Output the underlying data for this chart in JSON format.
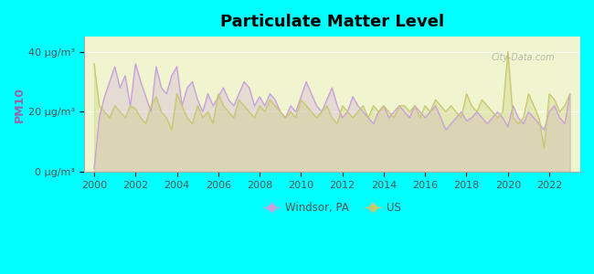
{
  "title": "Particulate Matter Level",
  "ylabel": "PM10",
  "background_color": "#00FFFF",
  "plot_bg_color": "#f0f5d0",
  "windsor_color": "#c9a0dc",
  "us_color": "#c8c870",
  "ylim": [
    0,
    45
  ],
  "ytick_labels": [
    "0 μg/m³",
    "20 μg/m³",
    "40 μg/m³"
  ],
  "ytick_values": [
    0,
    20,
    40
  ],
  "xmin": 1999.5,
  "xmax": 2023.5,
  "windsor_x": [
    2000.0,
    2000.25,
    2000.5,
    2000.75,
    2001.0,
    2001.25,
    2001.5,
    2001.75,
    2002.0,
    2002.25,
    2002.5,
    2002.75,
    2003.0,
    2003.25,
    2003.5,
    2003.75,
    2004.0,
    2004.25,
    2004.5,
    2004.75,
    2005.0,
    2005.25,
    2005.5,
    2005.75,
    2006.0,
    2006.25,
    2006.5,
    2006.75,
    2007.0,
    2007.25,
    2007.5,
    2007.75,
    2008.0,
    2008.25,
    2008.5,
    2008.75,
    2009.0,
    2009.25,
    2009.5,
    2009.75,
    2010.0,
    2010.25,
    2010.5,
    2010.75,
    2011.0,
    2011.25,
    2011.5,
    2011.75,
    2012.0,
    2012.25,
    2012.5,
    2012.75,
    2013.0,
    2013.25,
    2013.5,
    2013.75,
    2014.0,
    2014.25,
    2014.5,
    2014.75,
    2015.0,
    2015.25,
    2015.5,
    2015.75,
    2016.0,
    2016.25,
    2016.5,
    2016.75,
    2017.0,
    2017.25,
    2017.5,
    2017.75,
    2018.0,
    2018.25,
    2018.5,
    2018.75,
    2019.0,
    2019.25,
    2019.5,
    2019.75,
    2020.0,
    2020.25,
    2020.5,
    2020.75,
    2021.0,
    2021.25,
    2021.5,
    2021.75,
    2022.0,
    2022.25,
    2022.5,
    2022.75,
    2023.0
  ],
  "windsor_y": [
    1,
    18,
    25,
    30,
    35,
    28,
    32,
    22,
    36,
    30,
    25,
    20,
    35,
    28,
    26,
    32,
    35,
    22,
    28,
    30,
    24,
    20,
    26,
    22,
    25,
    28,
    24,
    22,
    26,
    30,
    28,
    22,
    25,
    22,
    26,
    24,
    20,
    18,
    22,
    20,
    25,
    30,
    26,
    22,
    20,
    24,
    28,
    22,
    18,
    20,
    25,
    22,
    20,
    18,
    16,
    20,
    22,
    18,
    20,
    22,
    20,
    18,
    22,
    20,
    18,
    20,
    22,
    18,
    14,
    16,
    18,
    20,
    17,
    18,
    20,
    18,
    16,
    18,
    20,
    18,
    15,
    22,
    18,
    16,
    20,
    18,
    16,
    14,
    20,
    22,
    18,
    16,
    26
  ],
  "us_x": [
    2000.0,
    2000.25,
    2000.5,
    2000.75,
    2001.0,
    2001.25,
    2001.5,
    2001.75,
    2002.0,
    2002.25,
    2002.5,
    2002.75,
    2003.0,
    2003.25,
    2003.5,
    2003.75,
    2004.0,
    2004.25,
    2004.5,
    2004.75,
    2005.0,
    2005.25,
    2005.5,
    2005.75,
    2006.0,
    2006.25,
    2006.5,
    2006.75,
    2007.0,
    2007.25,
    2007.5,
    2007.75,
    2008.0,
    2008.25,
    2008.5,
    2008.75,
    2009.0,
    2009.25,
    2009.5,
    2009.75,
    2010.0,
    2010.25,
    2010.5,
    2010.75,
    2011.0,
    2011.25,
    2011.5,
    2011.75,
    2012.0,
    2012.25,
    2012.5,
    2012.75,
    2013.0,
    2013.25,
    2013.5,
    2013.75,
    2014.0,
    2014.25,
    2014.5,
    2014.75,
    2015.0,
    2015.25,
    2015.5,
    2015.75,
    2016.0,
    2016.25,
    2016.5,
    2016.75,
    2017.0,
    2017.25,
    2017.5,
    2017.75,
    2018.0,
    2018.25,
    2018.5,
    2018.75,
    2019.0,
    2019.25,
    2019.5,
    2019.75,
    2020.0,
    2020.25,
    2020.5,
    2020.75,
    2021.0,
    2021.25,
    2021.5,
    2021.75,
    2022.0,
    2022.25,
    2022.5,
    2022.75,
    2023.0
  ],
  "us_y": [
    36,
    22,
    20,
    18,
    22,
    20,
    18,
    22,
    21,
    18,
    16,
    22,
    25,
    20,
    18,
    14,
    26,
    22,
    18,
    16,
    22,
    18,
    20,
    16,
    26,
    22,
    20,
    18,
    24,
    22,
    20,
    18,
    22,
    20,
    24,
    22,
    20,
    18,
    20,
    18,
    24,
    22,
    20,
    18,
    20,
    22,
    18,
    16,
    22,
    20,
    18,
    20,
    22,
    18,
    22,
    20,
    22,
    20,
    18,
    22,
    22,
    20,
    22,
    18,
    22,
    20,
    24,
    22,
    20,
    22,
    20,
    18,
    26,
    22,
    20,
    24,
    22,
    20,
    18,
    20,
    40,
    18,
    16,
    18,
    26,
    22,
    18,
    8,
    26,
    24,
    20,
    22,
    26
  ],
  "legend_windsor_label": "Windsor, PA",
  "legend_us_label": "US",
  "watermark": "City-Data.com"
}
